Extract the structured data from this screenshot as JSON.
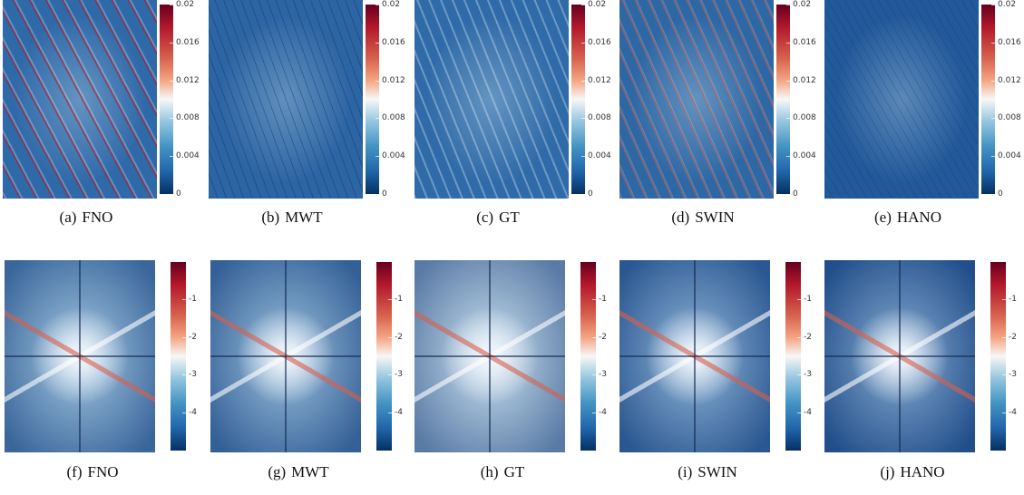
{
  "figure": {
    "rows": [
      {
        "colorbar_ticks": [
          "0.02",
          "0.016",
          "0.012",
          "0.008",
          "0.004",
          "0"
        ],
        "panels": [
          {
            "label": "(a)",
            "name": "FNO"
          },
          {
            "label": "(b)",
            "name": "MWT"
          },
          {
            "label": "(c)",
            "name": "GT"
          },
          {
            "label": "(d)",
            "name": "SWIN"
          },
          {
            "label": "(e)",
            "name": "HANO"
          }
        ]
      },
      {
        "colorbar_ticks": [
          "-1",
          "-2",
          "-3",
          "-4"
        ],
        "panels": [
          {
            "label": "(f)",
            "name": "FNO"
          },
          {
            "label": "(g)",
            "name": "MWT"
          },
          {
            "label": "(h)",
            "name": "GT"
          },
          {
            "label": "(i)",
            "name": "SWIN"
          },
          {
            "label": "(j)",
            "name": "HANO"
          }
        ]
      }
    ]
  }
}
